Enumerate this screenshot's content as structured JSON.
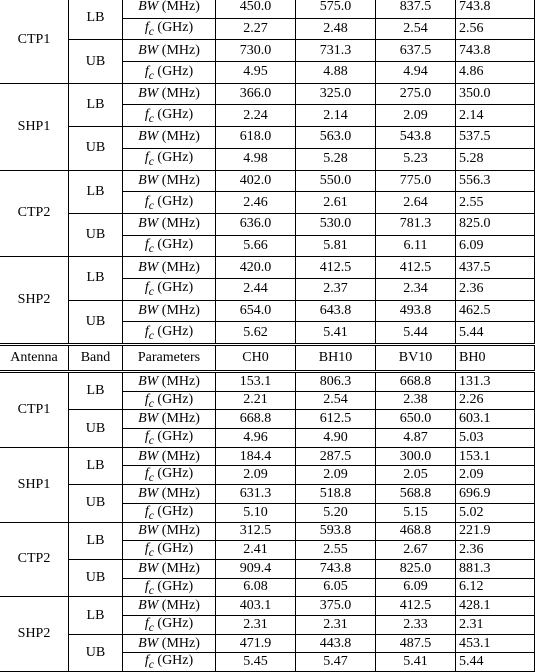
{
  "table": {
    "blocks": [
      {
        "antennas": [
          {
            "name": "CTP1",
            "bands": [
              {
                "name": "LB",
                "params": [
                  {
                    "symbol": "BW",
                    "unit": "(MHz)",
                    "values": [
                      "450.0",
                      "575.0",
                      "837.5",
                      "743.8"
                    ]
                  },
                  {
                    "symbol": "f",
                    "sub": "c",
                    "unit": "(GHz)",
                    "values": [
                      "2.27",
                      "2.48",
                      "2.54",
                      "2.56"
                    ]
                  }
                ]
              },
              {
                "name": "UB",
                "params": [
                  {
                    "symbol": "BW",
                    "unit": "(MHz)",
                    "values": [
                      "730.0",
                      "731.3",
                      "637.5",
                      "743.8"
                    ]
                  },
                  {
                    "symbol": "f",
                    "sub": "c",
                    "unit": "(GHz)",
                    "values": [
                      "4.95",
                      "4.88",
                      "4.94",
                      "4.86"
                    ]
                  }
                ]
              }
            ]
          },
          {
            "name": "SHP1",
            "bands": [
              {
                "name": "LB",
                "params": [
                  {
                    "symbol": "BW",
                    "unit": "(MHz)",
                    "values": [
                      "366.0",
                      "325.0",
                      "275.0",
                      "350.0"
                    ]
                  },
                  {
                    "symbol": "f",
                    "sub": "c",
                    "unit": "(GHz)",
                    "values": [
                      "2.24",
                      "2.14",
                      "2.09",
                      "2.14"
                    ]
                  }
                ]
              },
              {
                "name": "UB",
                "params": [
                  {
                    "symbol": "BW",
                    "unit": "(MHz)",
                    "values": [
                      "618.0",
                      "563.0",
                      "543.8",
                      "537.5"
                    ]
                  },
                  {
                    "symbol": "f",
                    "sub": "c",
                    "unit": "(GHz)",
                    "values": [
                      "4.98",
                      "5.28",
                      "5.23",
                      "5.28"
                    ]
                  }
                ]
              }
            ]
          },
          {
            "name": "CTP2",
            "bands": [
              {
                "name": "LB",
                "params": [
                  {
                    "symbol": "BW",
                    "unit": "(MHz)",
                    "values": [
                      "402.0",
                      "550.0",
                      "775.0",
                      "556.3"
                    ]
                  },
                  {
                    "symbol": "f",
                    "sub": "c",
                    "unit": "(GHz)",
                    "values": [
                      "2.46",
                      "2.61",
                      "2.64",
                      "2.55"
                    ]
                  }
                ]
              },
              {
                "name": "UB",
                "params": [
                  {
                    "symbol": "BW",
                    "unit": "(MHz)",
                    "values": [
                      "636.0",
                      "530.0",
                      "781.3",
                      "825.0"
                    ]
                  },
                  {
                    "symbol": "f",
                    "sub": "c",
                    "unit": "(GHz)",
                    "values": [
                      "5.66",
                      "5.81",
                      "6.11",
                      "6.09"
                    ]
                  }
                ]
              }
            ]
          },
          {
            "name": "SHP2",
            "bands": [
              {
                "name": "LB",
                "params": [
                  {
                    "symbol": "BW",
                    "unit": "(MHz)",
                    "values": [
                      "420.0",
                      "412.5",
                      "412.5",
                      "437.5"
                    ]
                  },
                  {
                    "symbol": "f",
                    "sub": "c",
                    "unit": "(GHz)",
                    "values": [
                      "2.44",
                      "2.37",
                      "2.34",
                      "2.36"
                    ]
                  }
                ]
              },
              {
                "name": "UB",
                "params": [
                  {
                    "symbol": "BW",
                    "unit": "(MHz)",
                    "values": [
                      "654.0",
                      "643.8",
                      "493.8",
                      "462.5"
                    ]
                  },
                  {
                    "symbol": "f",
                    "sub": "c",
                    "unit": "(GHz)",
                    "values": [
                      "5.62",
                      "5.41",
                      "5.44",
                      "5.44"
                    ]
                  }
                ]
              }
            ]
          }
        ]
      },
      {
        "header": [
          "Antenna",
          "Band",
          "Parameters",
          "CH0",
          "BH10",
          "BV10",
          "BH0"
        ],
        "antennas": [
          {
            "name": "CTP1",
            "bands": [
              {
                "name": "LB",
                "params": [
                  {
                    "symbol": "BW",
                    "unit": "(MHz)",
                    "values": [
                      "153.1",
                      "806.3",
                      "668.8",
                      "131.3"
                    ]
                  },
                  {
                    "symbol": "f",
                    "sub": "c",
                    "unit": "(GHz)",
                    "values": [
                      "2.21",
                      "2.54",
                      "2.38",
                      "2.26"
                    ]
                  }
                ]
              },
              {
                "name": "UB",
                "params": [
                  {
                    "symbol": "BW",
                    "unit": "(MHz)",
                    "values": [
                      "668.8",
                      "612.5",
                      "650.0",
                      "603.1"
                    ]
                  },
                  {
                    "symbol": "f",
                    "sub": "c",
                    "unit": "(GHz)",
                    "values": [
                      "4.96",
                      "4.90",
                      "4.87",
                      "5.03"
                    ]
                  }
                ]
              }
            ]
          },
          {
            "name": "SHP1",
            "bands": [
              {
                "name": "LB",
                "params": [
                  {
                    "symbol": "BW",
                    "unit": "(MHz)",
                    "values": [
                      "184.4",
                      "287.5",
                      "300.0",
                      "153.1"
                    ]
                  },
                  {
                    "symbol": "f",
                    "sub": "c",
                    "unit": "(GHz)",
                    "values": [
                      "2.09",
                      "2.09",
                      "2.05",
                      "2.09"
                    ]
                  }
                ]
              },
              {
                "name": "UB",
                "params": [
                  {
                    "symbol": "BW",
                    "unit": "(MHz)",
                    "values": [
                      "631.3",
                      "518.8",
                      "568.8",
                      "696.9"
                    ]
                  },
                  {
                    "symbol": "f",
                    "sub": "c",
                    "unit": "(GHz)",
                    "values": [
                      "5.10",
                      "5.20",
                      "5.15",
                      "5.02"
                    ]
                  }
                ]
              }
            ]
          },
          {
            "name": "CTP2",
            "bands": [
              {
                "name": "LB",
                "params": [
                  {
                    "symbol": "BW",
                    "unit": "(MHz)",
                    "values": [
                      "312.5",
                      "593.8",
                      "468.8",
                      "221.9"
                    ]
                  },
                  {
                    "symbol": "f",
                    "sub": "c",
                    "unit": "(GHz)",
                    "values": [
                      "2.41",
                      "2.55",
                      "2.67",
                      "2.36"
                    ]
                  }
                ]
              },
              {
                "name": "UB",
                "params": [
                  {
                    "symbol": "BW",
                    "unit": "(MHz)",
                    "values": [
                      "909.4",
                      "743.8",
                      "825.0",
                      "881.3"
                    ]
                  },
                  {
                    "symbol": "f",
                    "sub": "c",
                    "unit": "(GHz)",
                    "values": [
                      "6.08",
                      "6.05",
                      "6.09",
                      "6.12"
                    ]
                  }
                ]
              }
            ]
          },
          {
            "name": "SHP2",
            "bands": [
              {
                "name": "LB",
                "params": [
                  {
                    "symbol": "BW",
                    "unit": "(MHz)",
                    "values": [
                      "403.1",
                      "375.0",
                      "412.5",
                      "428.1"
                    ]
                  },
                  {
                    "symbol": "f",
                    "sub": "c",
                    "unit": "(GHz)",
                    "values": [
                      "2.31",
                      "2.31",
                      "2.33",
                      "2.31"
                    ]
                  }
                ]
              },
              {
                "name": "UB",
                "params": [
                  {
                    "symbol": "BW",
                    "unit": "(MHz)",
                    "values": [
                      "471.9",
                      "443.8",
                      "487.5",
                      "453.1"
                    ]
                  },
                  {
                    "symbol": "f",
                    "sub": "c",
                    "unit": "(GHz)",
                    "values": [
                      "5.45",
                      "5.47",
                      "5.41",
                      "5.44"
                    ]
                  }
                ]
              }
            ]
          }
        ]
      }
    ]
  }
}
